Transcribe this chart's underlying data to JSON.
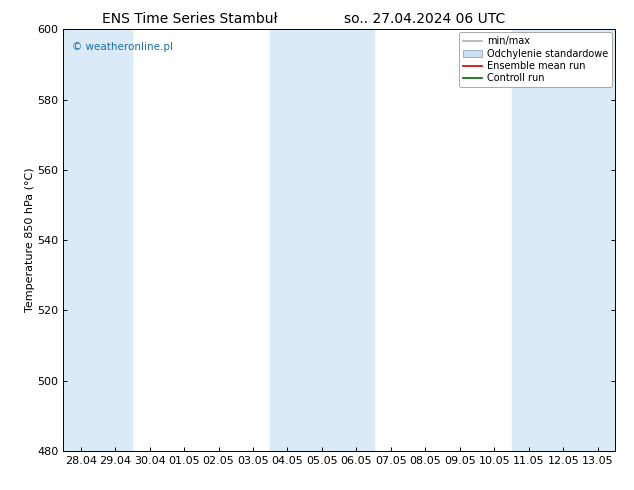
{
  "title_left": "ENS Time Series Stambuł",
  "title_right": "so.. 27.04.2024 06 UTC",
  "ylabel": "Temperature 850 hPa (°C)",
  "ylim": [
    480,
    600
  ],
  "yticks": [
    480,
    500,
    520,
    540,
    560,
    580,
    600
  ],
  "x_labels": [
    "28.04",
    "29.04",
    "30.04",
    "01.05",
    "02.05",
    "03.05",
    "04.05",
    "05.05",
    "06.05",
    "07.05",
    "08.05",
    "09.05",
    "10.05",
    "11.05",
    "12.05",
    "13.05"
  ],
  "n_ticks": 16,
  "shade_color": "#daeaf7",
  "bg_color": "#ffffff",
  "watermark": "© weatheronline.pl",
  "watermark_color": "#1a6eb5",
  "title_fontsize": 10,
  "axis_fontsize": 8,
  "tick_fontsize": 8,
  "shaded_intervals": [
    [
      0,
      1
    ],
    [
      6,
      8
    ],
    [
      13,
      15
    ]
  ],
  "legend_gray_line": "#b0b0b0",
  "legend_fill_color": "#ccdff0",
  "legend_red": "#cc0000",
  "legend_green": "#006600"
}
